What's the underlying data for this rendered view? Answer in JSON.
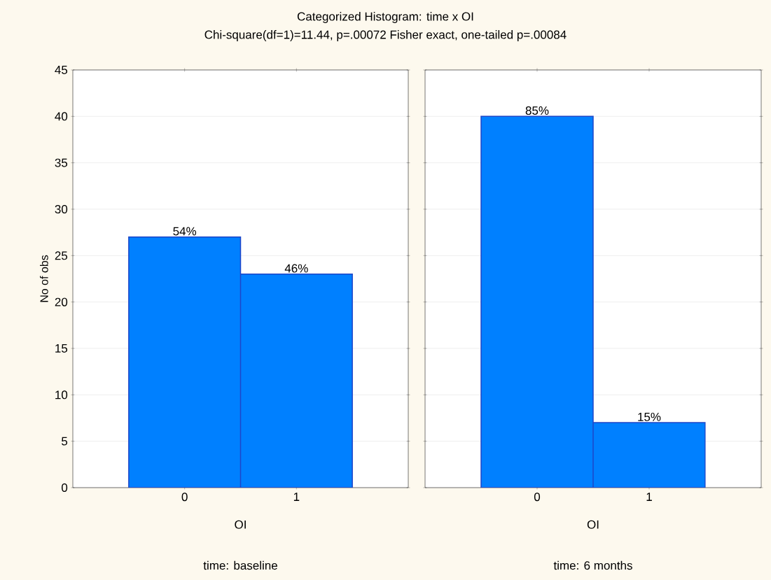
{
  "chart_data": [
    {
      "type": "bar",
      "title": "Categorized Histogram: time x OI",
      "subtitle": "Chi-square(df=1)=11.44, p=.00072 Fisher exact, one-tailed p=.00084",
      "xlabel": "OI",
      "ylabel": "No of obs",
      "categories": [
        "0",
        "1"
      ],
      "values": [
        27,
        23
      ],
      "color": "#0080ff",
      "ylim": [
        0,
        45
      ],
      "yticks": [
        0,
        5,
        10,
        15,
        20,
        25,
        30,
        35,
        40,
        45
      ],
      "grid": "y",
      "annotations": [
        {
          "text": "54%",
          "x": "0",
          "y": 27
        },
        {
          "text": "46%",
          "x": "1",
          "y": 23
        },
        "time: baseline"
      ]
    },
    {
      "type": "bar",
      "xlabel": "OI",
      "categories": [
        "0",
        "1"
      ],
      "values": [
        40,
        7
      ],
      "color": "#0080ff",
      "ylim": [
        0,
        45
      ],
      "yticks": [
        0,
        5,
        10,
        15,
        20,
        25,
        30,
        35,
        40,
        45
      ],
      "grid": "y",
      "tick_labels": "x",
      "annotations": [
        {
          "text": "85%",
          "x": "0",
          "y": 40
        },
        {
          "text": "15%",
          "x": "1",
          "y": 7
        },
        "time: 6 months"
      ]
    }
  ]
}
